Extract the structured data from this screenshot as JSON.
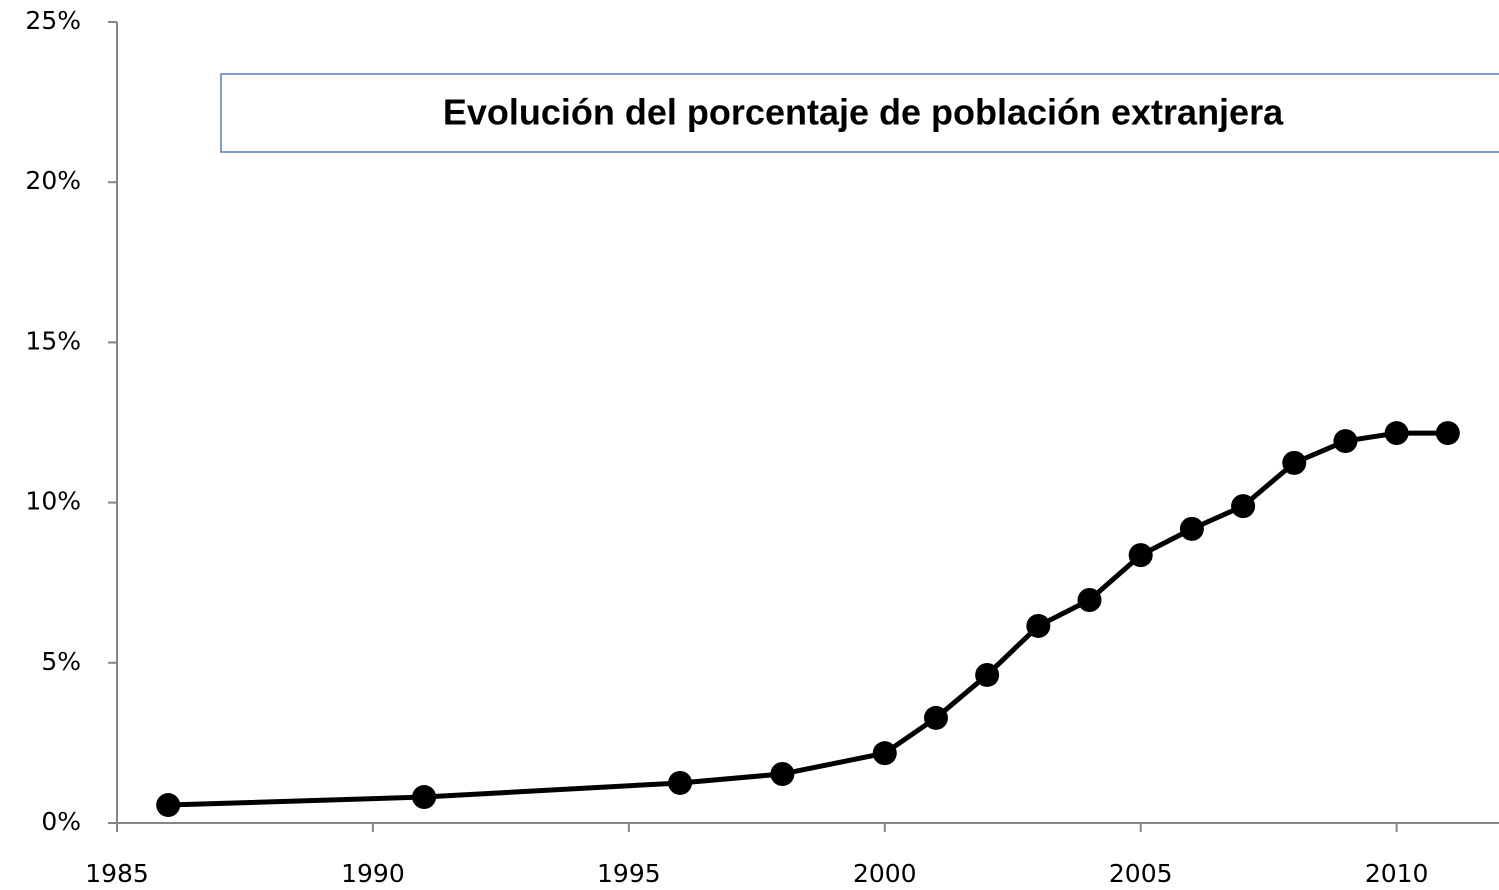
{
  "chart_data": {
    "type": "line",
    "title": "Evolución del porcentaje de población extranjera",
    "x": [
      1986,
      1991,
      1996,
      1998,
      2000,
      2001,
      2002,
      2003,
      2004,
      2005,
      2006,
      2007,
      2008,
      2009,
      2010,
      2011
    ],
    "series": [
      {
        "color": "#000000",
        "values": [
          0.56,
          0.81,
          1.25,
          1.53,
          2.18,
          3.28,
          4.62,
          6.15,
          6.96,
          8.36,
          9.18,
          9.89,
          11.24,
          11.92,
          12.17,
          12.17
        ]
      }
    ],
    "xlim": [
      1985,
      2012
    ],
    "xticks": [
      1985,
      1990,
      1995,
      2000,
      2005,
      2010
    ],
    "ylim": [
      0,
      25
    ],
    "yticks": [
      {
        "value": 0,
        "label": "0%"
      },
      {
        "value": 5,
        "label": "5%"
      },
      {
        "value": 10,
        "label": "10%"
      },
      {
        "value": 15,
        "label": "15%"
      },
      {
        "value": 20,
        "label": "20%"
      },
      {
        "value": 25,
        "label": "25%"
      }
    ],
    "grid": false
  }
}
